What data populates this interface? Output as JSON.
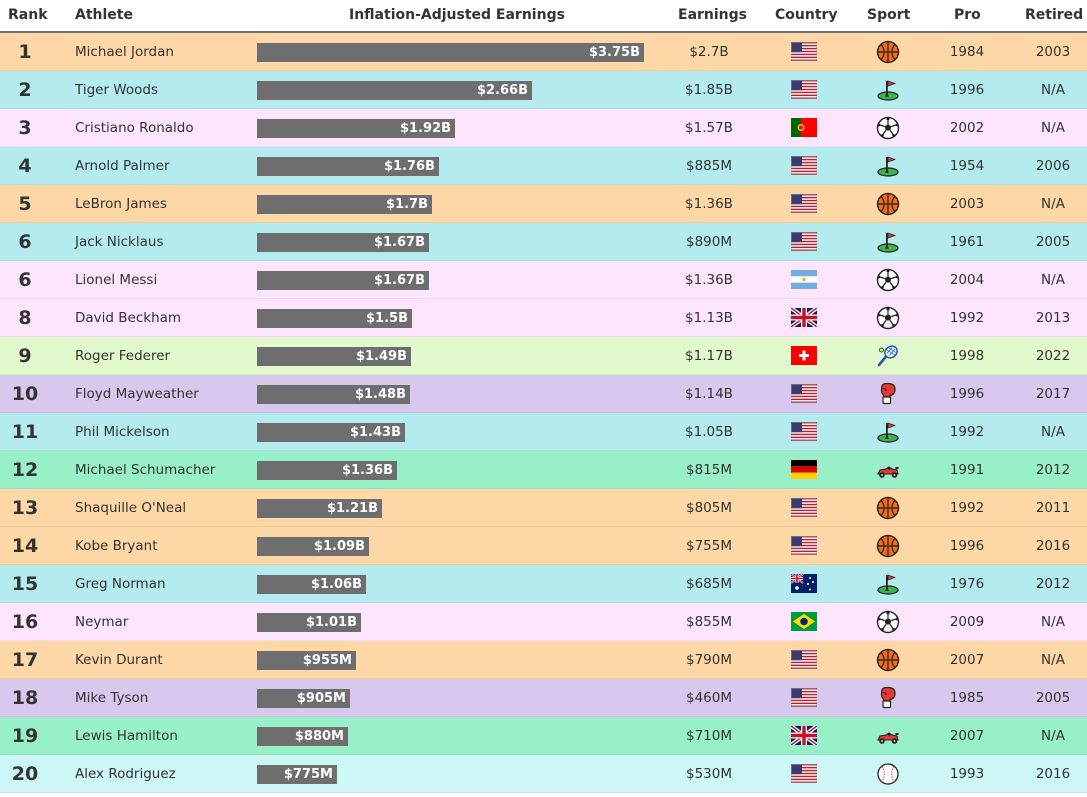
{
  "header": {
    "rank": "Rank",
    "athlete": "Athlete",
    "inflation": "Inflation-Adjusted Earnings",
    "earnings": "Earnings",
    "country": "Country",
    "sport": "Sport",
    "pro": "Pro",
    "retired": "Retired"
  },
  "colors": {
    "basketball": "#fdd7a6",
    "golf": "#b3ebef",
    "soccer": "#fde6fd",
    "tennis": "#e2f9cd",
    "boxing": "#d8c8ed",
    "racing": "#98f0c8",
    "baseball": "#cdf6f6",
    "bar": "#6e6e6e"
  },
  "chart_data": {
    "type": "bar",
    "max_value": 3.75,
    "categories": [
      "Michael Jordan",
      "Tiger Woods",
      "Cristiano Ronaldo",
      "Arnold Palmer",
      "LeBron James",
      "Jack Nicklaus",
      "Lionel Messi",
      "David Beckham",
      "Roger Federer",
      "Floyd Mayweather",
      "Phil Mickelson",
      "Michael Schumacher",
      "Shaquille O'Neal",
      "Kobe Bryant",
      "Greg Norman",
      "Neymar",
      "Kevin Durant",
      "Mike Tyson",
      "Lewis Hamilton",
      "Alex Rodriguez"
    ],
    "values": [
      3.75,
      2.66,
      1.92,
      1.76,
      1.7,
      1.67,
      1.67,
      1.5,
      1.49,
      1.48,
      1.43,
      1.36,
      1.21,
      1.09,
      1.06,
      1.01,
      0.955,
      0.905,
      0.88,
      0.775
    ]
  },
  "rows": [
    {
      "rank": "1",
      "athlete": "Michael Jordan",
      "bar_label": "$3.75B",
      "value": 3.75,
      "earnings": "$2.7B",
      "country": "usa",
      "sport": "basketball",
      "pro": "1984",
      "retired": "2003"
    },
    {
      "rank": "2",
      "athlete": "Tiger Woods",
      "bar_label": "$2.66B",
      "value": 2.66,
      "earnings": "$1.85B",
      "country": "usa",
      "sport": "golf",
      "pro": "1996",
      "retired": "N/A"
    },
    {
      "rank": "3",
      "athlete": "Cristiano Ronaldo",
      "bar_label": "$1.92B",
      "value": 1.92,
      "earnings": "$1.57B",
      "country": "portugal",
      "sport": "soccer",
      "pro": "2002",
      "retired": "N/A"
    },
    {
      "rank": "4",
      "athlete": "Arnold Palmer",
      "bar_label": "$1.76B",
      "value": 1.76,
      "earnings": "$885M",
      "country": "usa",
      "sport": "golf",
      "pro": "1954",
      "retired": "2006"
    },
    {
      "rank": "5",
      "athlete": "LeBron James",
      "bar_label": "$1.7B",
      "value": 1.7,
      "earnings": "$1.36B",
      "country": "usa",
      "sport": "basketball",
      "pro": "2003",
      "retired": "N/A"
    },
    {
      "rank": "6",
      "athlete": "Jack Nicklaus",
      "bar_label": "$1.67B",
      "value": 1.67,
      "earnings": "$890M",
      "country": "usa",
      "sport": "golf",
      "pro": "1961",
      "retired": "2005"
    },
    {
      "rank": "6",
      "athlete": "Lionel Messi",
      "bar_label": "$1.67B",
      "value": 1.67,
      "earnings": "$1.36B",
      "country": "argentina",
      "sport": "soccer",
      "pro": "2004",
      "retired": "N/A"
    },
    {
      "rank": "8",
      "athlete": "David Beckham",
      "bar_label": "$1.5B",
      "value": 1.5,
      "earnings": "$1.13B",
      "country": "uk",
      "sport": "soccer",
      "pro": "1992",
      "retired": "2013"
    },
    {
      "rank": "9",
      "athlete": "Roger Federer",
      "bar_label": "$1.49B",
      "value": 1.49,
      "earnings": "$1.17B",
      "country": "switzerland",
      "sport": "tennis",
      "pro": "1998",
      "retired": "2022"
    },
    {
      "rank": "10",
      "athlete": "Floyd Mayweather",
      "bar_label": "$1.48B",
      "value": 1.48,
      "earnings": "$1.14B",
      "country": "usa",
      "sport": "boxing",
      "pro": "1996",
      "retired": "2017"
    },
    {
      "rank": "11",
      "athlete": "Phil Mickelson",
      "bar_label": "$1.43B",
      "value": 1.43,
      "earnings": "$1.05B",
      "country": "usa",
      "sport": "golf",
      "pro": "1992",
      "retired": "N/A"
    },
    {
      "rank": "12",
      "athlete": "Michael Schumacher",
      "bar_label": "$1.36B",
      "value": 1.36,
      "earnings": "$815M",
      "country": "germany",
      "sport": "racing",
      "pro": "1991",
      "retired": "2012"
    },
    {
      "rank": "13",
      "athlete": "Shaquille O'Neal",
      "bar_label": "$1.21B",
      "value": 1.21,
      "earnings": "$805M",
      "country": "usa",
      "sport": "basketball",
      "pro": "1992",
      "retired": "2011"
    },
    {
      "rank": "14",
      "athlete": "Kobe Bryant",
      "bar_label": "$1.09B",
      "value": 1.09,
      "earnings": "$755M",
      "country": "usa",
      "sport": "basketball",
      "pro": "1996",
      "retired": "2016"
    },
    {
      "rank": "15",
      "athlete": "Greg Norman",
      "bar_label": "$1.06B",
      "value": 1.06,
      "earnings": "$685M",
      "country": "australia",
      "sport": "golf",
      "pro": "1976",
      "retired": "2012"
    },
    {
      "rank": "16",
      "athlete": "Neymar",
      "bar_label": "$1.01B",
      "value": 1.01,
      "earnings": "$855M",
      "country": "brazil",
      "sport": "soccer",
      "pro": "2009",
      "retired": "N/A"
    },
    {
      "rank": "17",
      "athlete": "Kevin Durant",
      "bar_label": "$955M",
      "value": 0.955,
      "earnings": "$790M",
      "country": "usa",
      "sport": "basketball",
      "pro": "2007",
      "retired": "N/A"
    },
    {
      "rank": "18",
      "athlete": "Mike Tyson",
      "bar_label": "$905M",
      "value": 0.905,
      "earnings": "$460M",
      "country": "usa",
      "sport": "boxing",
      "pro": "1985",
      "retired": "2005"
    },
    {
      "rank": "19",
      "athlete": "Lewis Hamilton",
      "bar_label": "$880M",
      "value": 0.88,
      "earnings": "$710M",
      "country": "uk",
      "sport": "racing",
      "pro": "2007",
      "retired": "N/A"
    },
    {
      "rank": "20",
      "athlete": "Alex Rodriguez",
      "bar_label": "$775M",
      "value": 0.775,
      "earnings": "$530M",
      "country": "usa",
      "sport": "baseball",
      "pro": "1993",
      "retired": "2016"
    }
  ]
}
